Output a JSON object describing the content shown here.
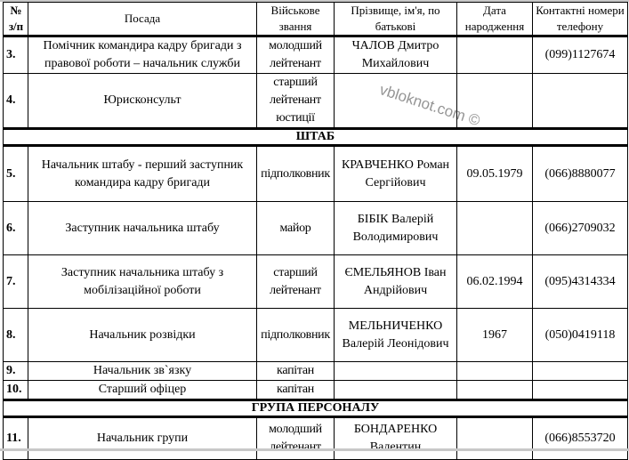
{
  "header": {
    "num": "№ з/п",
    "position": "Посада",
    "rank": "Військове звання",
    "name": "Прізвище, ім'я, по батькові",
    "dob": "Дата народження",
    "phone": "Контактні номери телефону"
  },
  "rows": [
    {
      "type": "row",
      "num": "3.",
      "position": "Помічник командира кадру бригади з правової роботи – начальник служби",
      "rank": "молодший лейтенант",
      "name": "ЧАЛОВ Дмитро Михайлович",
      "dob": "",
      "phone": "(099)1127674"
    },
    {
      "type": "row",
      "num": "4.",
      "position": "Юрисконсульт",
      "rank": "старший лейтенант юстиції",
      "name": "",
      "dob": "",
      "phone": ""
    },
    {
      "type": "section",
      "title": "ШТАБ"
    },
    {
      "type": "row",
      "num": "5.",
      "position": "Начальник штабу - перший заступник командира кадру бригади",
      "rank": "підполковник",
      "name": "КРАВЧЕНКО Роман Сергійович",
      "dob": "09.05.1979",
      "phone": "(066)8880077"
    },
    {
      "type": "row",
      "num": "6.",
      "position": "Заступник начальника штабу",
      "rank": "майор",
      "name": "БІБІК Валерій Володимирович",
      "dob": "",
      "phone": "(066)2709032"
    },
    {
      "type": "row",
      "num": "7.",
      "position": "Заступник начальника штабу з мобілізаційної роботи",
      "rank": "старший лейтенант",
      "name": "ЄМЕЛЬЯНОВ Іван Андрійович",
      "dob": "06.02.1994",
      "phone": "(095)4314334"
    },
    {
      "type": "row",
      "num": "8.",
      "position": "Начальник розвідки",
      "rank": "підполковник",
      "name": "МЕЛЬНИЧЕНКО Валерій Леонідович",
      "dob": "1967",
      "phone": "(050)0419118"
    },
    {
      "type": "row",
      "num": "9.",
      "position": "Начальник зв`язку",
      "rank": "капітан",
      "name": "",
      "dob": "",
      "phone": ""
    },
    {
      "type": "row",
      "num": "10.",
      "position": "Старший офіцер",
      "rank": "капітан",
      "name": "",
      "dob": "",
      "phone": ""
    },
    {
      "type": "section",
      "title": "ГРУПА ПЕРСОНАЛУ"
    },
    {
      "type": "row",
      "num": "11.",
      "position": "Начальник групи",
      "rank": "молодший лейтенант",
      "name": "БОНДАРЕНКО Валентин",
      "dob": "",
      "phone": "(066)8553720"
    }
  ],
  "watermark": "vbloknot.com ©"
}
